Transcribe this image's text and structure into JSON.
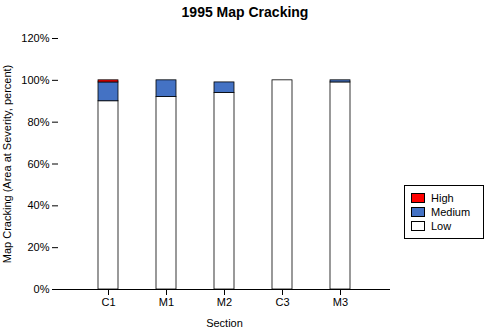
{
  "chart_data": {
    "type": "bar",
    "stacked": true,
    "title": "1995 Map Cracking",
    "xlabel": "Section",
    "ylabel": "Map Cracking (Area at Severity, percent)",
    "categories": [
      "C1",
      "M1",
      "M2",
      "C3",
      "M3"
    ],
    "series": [
      {
        "name": "Low",
        "color": "#ffffff",
        "values": [
          90,
          92,
          94,
          100,
          99
        ]
      },
      {
        "name": "Medium",
        "color": "#4472c4",
        "values": [
          9,
          8,
          5,
          0,
          1
        ]
      },
      {
        "name": "High",
        "color": "#ff0000",
        "values": [
          1,
          0,
          0,
          0,
          0
        ]
      }
    ],
    "ylim": [
      0,
      120
    ],
    "yticks": [
      {
        "value": 0,
        "label": "0%"
      },
      {
        "value": 20,
        "label": "20%"
      },
      {
        "value": 40,
        "label": "40%"
      },
      {
        "value": 60,
        "label": "60%"
      },
      {
        "value": 80,
        "label": "80%"
      },
      {
        "value": 100,
        "label": "100%"
      },
      {
        "value": 120,
        "label": "120%"
      }
    ],
    "grid": false,
    "legend": "lower right"
  }
}
